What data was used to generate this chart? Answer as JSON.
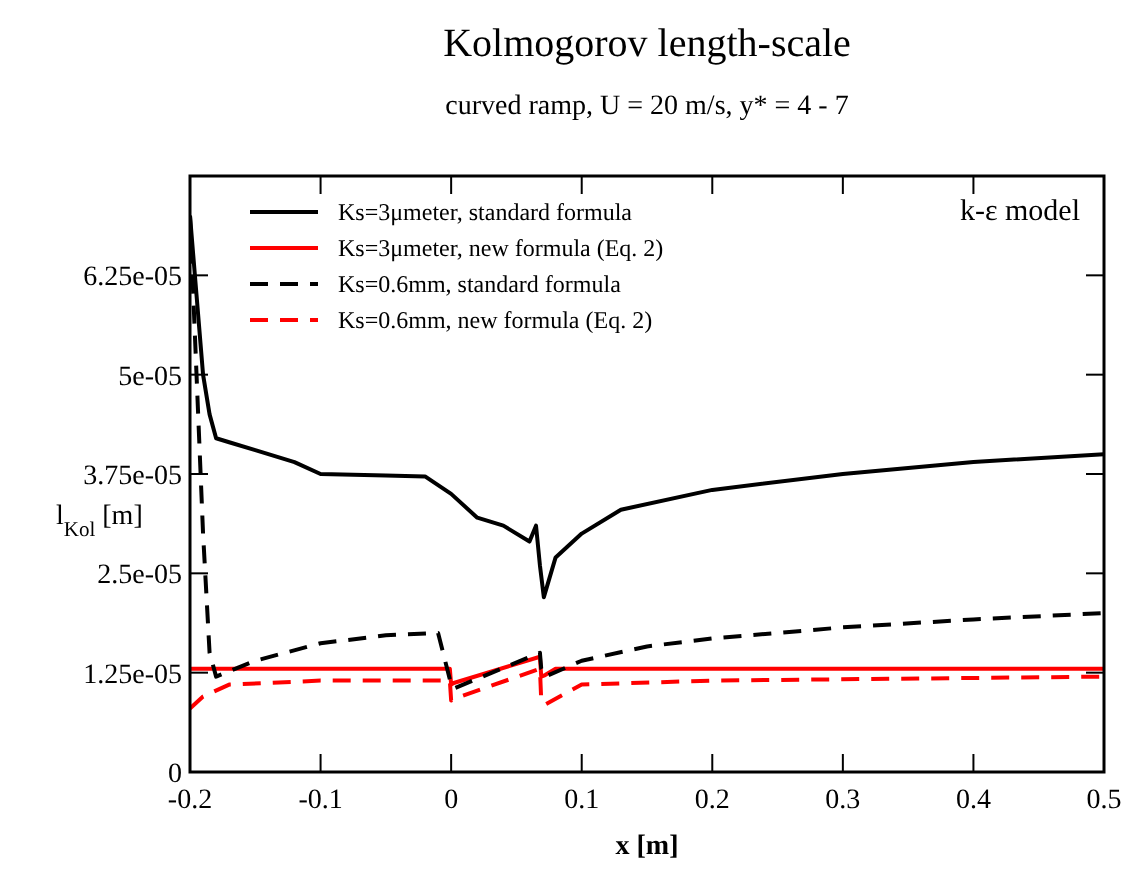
{
  "chart_data": {
    "type": "line",
    "title": "Kolmogorov length-scale",
    "subtitle": "curved ramp,  U = 20 m/s,  y* = 4 - 7",
    "xlabel": "x [m]",
    "ylabel": "l$_{Kol}$ [m]",
    "annotations": [
      "k-ε model"
    ],
    "xlim": [
      -0.2,
      0.5
    ],
    "xticks": [
      -0.2,
      -0.1,
      0,
      0.1,
      0.2,
      0.3,
      0.4,
      0.5
    ],
    "ylim": [
      0,
      7.5e-05
    ],
    "yticks": [
      0,
      {
        "value": 1.25e-05,
        "label": "1.25e-05"
      },
      {
        "value": 2.5e-05,
        "label": "2.5e-05"
      },
      {
        "value": 3.75e-05,
        "label": "3.75e-05"
      },
      {
        "value": 5e-05,
        "label": "5e-05"
      },
      {
        "value": 6.25e-05,
        "label": "6.25e-05"
      }
    ],
    "grid": false,
    "legend": "top left",
    "series": [
      {
        "name": "Ks=3μmeter, standard formula",
        "color": "#000000",
        "line_style": "solid",
        "x": [
          -0.2,
          -0.195,
          -0.19,
          -0.185,
          -0.18,
          -0.17,
          -0.15,
          -0.12,
          -0.1,
          -0.05,
          -0.02,
          0,
          0.02,
          0.04,
          0.06,
          0.065,
          0.068,
          0.071,
          0.08,
          0.1,
          0.13,
          0.2,
          0.3,
          0.4,
          0.5
        ],
        "values": [
          7e-05,
          6e-05,
          5e-05,
          4.5e-05,
          4.2e-05,
          4.15e-05,
          4.05e-05,
          3.9e-05,
          3.75e-05,
          3.73e-05,
          3.72e-05,
          3.5e-05,
          3.2e-05,
          3.1e-05,
          2.9e-05,
          3.1e-05,
          2.6e-05,
          2.2e-05,
          2.7e-05,
          3e-05,
          3.3e-05,
          3.55e-05,
          3.75e-05,
          3.9e-05,
          4e-05
        ]
      },
      {
        "name": "Ks=3μmeter, new formula (Eq. 2)",
        "color": "#ff0000",
        "line_style": "solid",
        "x": [
          -0.2,
          -0.1,
          -0.001,
          0,
          0.002,
          0.068,
          0.069,
          0.072,
          0.08,
          0.2,
          0.5
        ],
        "values": [
          1.3e-05,
          1.3e-05,
          1.3e-05,
          1.1e-05,
          1.12e-05,
          1.45e-05,
          1.2e-05,
          1.22e-05,
          1.3e-05,
          1.3e-05,
          1.3e-05
        ]
      },
      {
        "name": "Ks=0.6mm, standard formula",
        "color": "#000000",
        "line_style": "dashed",
        "x": [
          -0.2,
          -0.195,
          -0.19,
          -0.185,
          -0.18,
          -0.15,
          -0.1,
          -0.05,
          -0.01,
          0,
          0.002,
          0.068,
          0.069,
          0.072,
          0.1,
          0.15,
          0.2,
          0.3,
          0.4,
          0.5
        ],
        "values": [
          7e-05,
          5e-05,
          3e-05,
          1.5e-05,
          1.2e-05,
          1.4e-05,
          1.62e-05,
          1.72e-05,
          1.75e-05,
          1.1e-05,
          1.05e-05,
          1.5e-05,
          1.3e-05,
          1.2e-05,
          1.4e-05,
          1.58e-05,
          1.68e-05,
          1.82e-05,
          1.92e-05,
          2e-05
        ]
      },
      {
        "name": "Ks=0.6mm, new formula (Eq. 2)",
        "color": "#ff0000",
        "line_style": "dashed",
        "x": [
          -0.2,
          -0.19,
          -0.17,
          -0.1,
          -0.001,
          0,
          0.002,
          0.068,
          0.069,
          0.072,
          0.1,
          0.2,
          0.5
        ],
        "values": [
          8e-06,
          9.5e-06,
          1.1e-05,
          1.15e-05,
          1.15e-05,
          9e-06,
          9.2e-06,
          1.3e-05,
          9e-06,
          8.5e-06,
          1.1e-05,
          1.15e-05,
          1.2e-05
        ]
      }
    ]
  }
}
